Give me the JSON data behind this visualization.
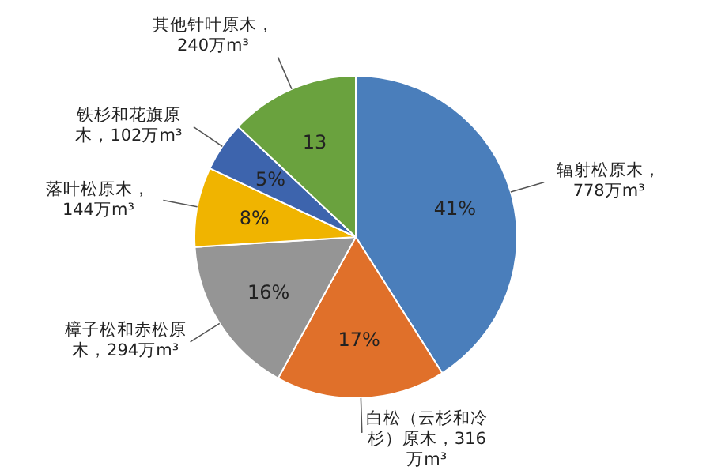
{
  "chart_data": {
    "type": "pie",
    "categories": [
      "辐射松原木，778万m³",
      "白松（云杉和冷杉）原木，316万m³",
      "樟子松和赤松原木，294万m³",
      "落叶松原木，144万m³",
      "铁杉和花旗原木，102万m³",
      "其他针叶原木，240万m³"
    ],
    "values": [
      41,
      17,
      16,
      8,
      5,
      13
    ],
    "value_labels": [
      "41%",
      "17%",
      "16%",
      "8%",
      "5%",
      "13"
    ],
    "colors": [
      "#4a7ebb",
      "#e0702a",
      "#959595",
      "#f0b400",
      "#3d64ad",
      "#6aa23e"
    ]
  }
}
